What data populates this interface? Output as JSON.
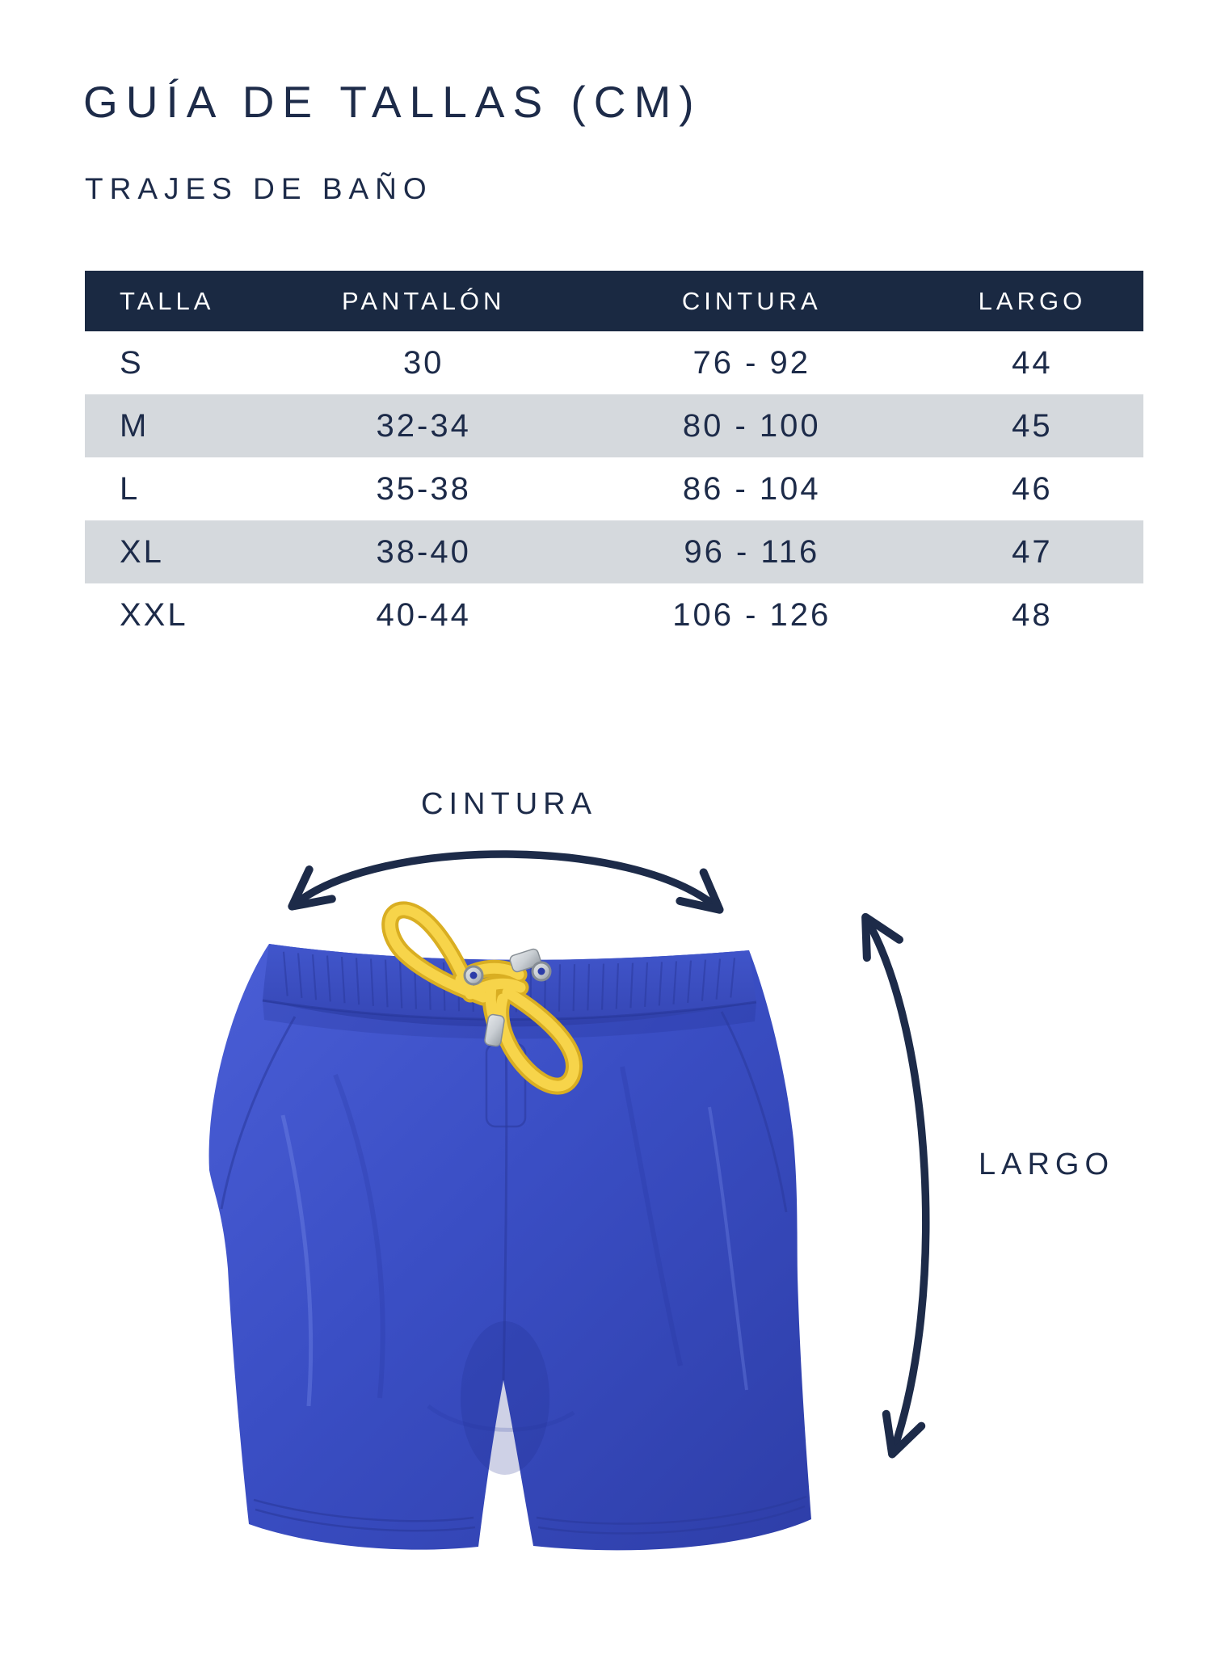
{
  "page": {
    "title": "GUÍA DE TALLAS (CM)",
    "subtitle": "TRAJES DE BAÑO"
  },
  "size_table": {
    "headers": [
      "TALLA",
      "PANTALÓN",
      "CINTURA",
      "LARGO"
    ],
    "rows": [
      {
        "talla": "S",
        "pantalon": "30",
        "cintura": "76 - 92",
        "largo": "44"
      },
      {
        "talla": "M",
        "pantalon": "32-34",
        "cintura": "80 - 100",
        "largo": "45"
      },
      {
        "talla": "L",
        "pantalon": "35-38",
        "cintura": "86 - 104",
        "largo": "46"
      },
      {
        "talla": "XL",
        "pantalon": "38-40",
        "cintura": "96 - 116",
        "largo": "47"
      },
      {
        "talla": "XXL",
        "pantalon": "40-44",
        "cintura": "106 - 126",
        "largo": "48"
      }
    ]
  },
  "diagram": {
    "waist_label": "CINTURA",
    "length_label": "LARGO"
  },
  "colors": {
    "navy_text": "#1d2b49",
    "table_header_bg": "#1a2942",
    "table_alt_row": "#d5d9dd",
    "shorts_blue": "#3a4ec4",
    "shorts_blue_dark": "#2b3a9e",
    "drawstring_yellow": "#f5ce3e",
    "aglet_silver": "#c9ced3"
  }
}
